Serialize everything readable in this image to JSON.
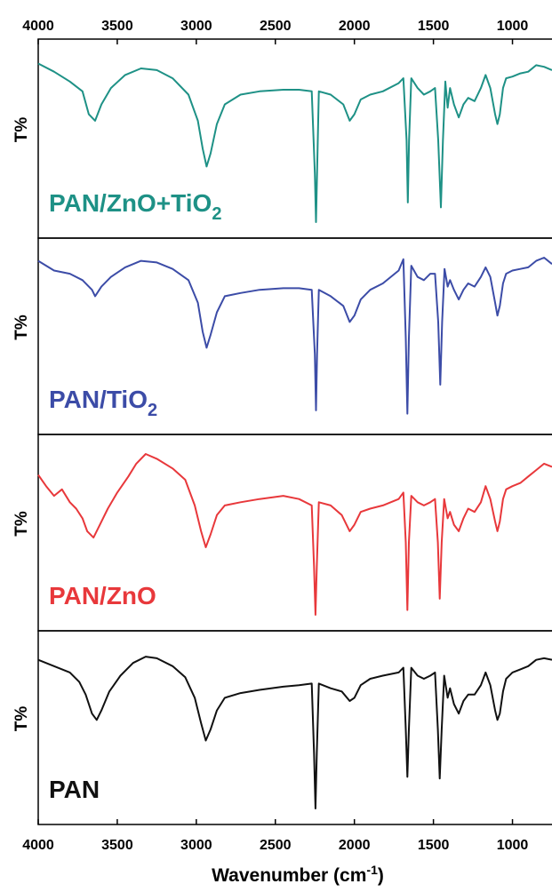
{
  "chart_data": {
    "type": "line",
    "title": "",
    "xlabel_main": "Wavenumber (cm",
    "xlabel_sup": "-1",
    "xlabel_close": ")",
    "ylabel": "T%",
    "xlim": [
      4000,
      750
    ],
    "x_reversed": true,
    "x_ticks": [
      4000,
      3500,
      3000,
      2500,
      2000,
      1500,
      1000
    ],
    "grid": false,
    "legend": "none; each panel labelled in lower-left corner",
    "series": [
      {
        "name_main": "PAN/ZnO+TiO",
        "name_sub": "2",
        "name_tail": "",
        "color": "#1e9186",
        "points": [
          [
            4000,
            0.97
          ],
          [
            3900,
            0.92
          ],
          [
            3800,
            0.86
          ],
          [
            3720,
            0.8
          ],
          [
            3680,
            0.66
          ],
          [
            3640,
            0.62
          ],
          [
            3600,
            0.72
          ],
          [
            3540,
            0.82
          ],
          [
            3450,
            0.9
          ],
          [
            3350,
            0.94
          ],
          [
            3250,
            0.93
          ],
          [
            3150,
            0.88
          ],
          [
            3050,
            0.78
          ],
          [
            2990,
            0.62
          ],
          [
            2960,
            0.45
          ],
          [
            2935,
            0.34
          ],
          [
            2910,
            0.42
          ],
          [
            2870,
            0.6
          ],
          [
            2820,
            0.72
          ],
          [
            2720,
            0.78
          ],
          [
            2600,
            0.8
          ],
          [
            2450,
            0.81
          ],
          [
            2350,
            0.81
          ],
          [
            2270,
            0.8
          ],
          [
            2250,
            0.3
          ],
          [
            2243,
            0.0
          ],
          [
            2236,
            0.3
          ],
          [
            2225,
            0.8
          ],
          [
            2150,
            0.78
          ],
          [
            2070,
            0.72
          ],
          [
            2030,
            0.62
          ],
          [
            2000,
            0.66
          ],
          [
            1960,
            0.75
          ],
          [
            1900,
            0.78
          ],
          [
            1820,
            0.8
          ],
          [
            1720,
            0.85
          ],
          [
            1690,
            0.88
          ],
          [
            1670,
            0.5
          ],
          [
            1662,
            0.12
          ],
          [
            1654,
            0.5
          ],
          [
            1640,
            0.88
          ],
          [
            1600,
            0.82
          ],
          [
            1560,
            0.78
          ],
          [
            1520,
            0.8
          ],
          [
            1490,
            0.82
          ],
          [
            1470,
            0.5
          ],
          [
            1453,
            0.09
          ],
          [
            1440,
            0.5
          ],
          [
            1425,
            0.86
          ],
          [
            1410,
            0.7
          ],
          [
            1395,
            0.82
          ],
          [
            1370,
            0.72
          ],
          [
            1340,
            0.64
          ],
          [
            1310,
            0.72
          ],
          [
            1280,
            0.76
          ],
          [
            1240,
            0.74
          ],
          [
            1200,
            0.82
          ],
          [
            1170,
            0.9
          ],
          [
            1140,
            0.82
          ],
          [
            1110,
            0.66
          ],
          [
            1095,
            0.6
          ],
          [
            1080,
            0.66
          ],
          [
            1060,
            0.82
          ],
          [
            1040,
            0.88
          ],
          [
            1000,
            0.89
          ],
          [
            950,
            0.91
          ],
          [
            900,
            0.92
          ],
          [
            850,
            0.96
          ],
          [
            800,
            0.95
          ],
          [
            750,
            0.93
          ]
        ]
      },
      {
        "name_main": "PAN/TiO",
        "name_sub": "2",
        "name_tail": "",
        "color": "#3c4ca7",
        "points": [
          [
            4000,
            0.98
          ],
          [
            3900,
            0.92
          ],
          [
            3800,
            0.9
          ],
          [
            3720,
            0.86
          ],
          [
            3660,
            0.8
          ],
          [
            3640,
            0.76
          ],
          [
            3600,
            0.82
          ],
          [
            3540,
            0.88
          ],
          [
            3450,
            0.94
          ],
          [
            3350,
            0.98
          ],
          [
            3250,
            0.97
          ],
          [
            3150,
            0.93
          ],
          [
            3050,
            0.86
          ],
          [
            2990,
            0.72
          ],
          [
            2960,
            0.54
          ],
          [
            2935,
            0.44
          ],
          [
            2910,
            0.52
          ],
          [
            2870,
            0.66
          ],
          [
            2820,
            0.76
          ],
          [
            2720,
            0.78
          ],
          [
            2600,
            0.8
          ],
          [
            2450,
            0.81
          ],
          [
            2350,
            0.81
          ],
          [
            2270,
            0.8
          ],
          [
            2250,
            0.4
          ],
          [
            2243,
            0.05
          ],
          [
            2236,
            0.4
          ],
          [
            2225,
            0.8
          ],
          [
            2150,
            0.76
          ],
          [
            2070,
            0.7
          ],
          [
            2030,
            0.6
          ],
          [
            2000,
            0.64
          ],
          [
            1960,
            0.74
          ],
          [
            1900,
            0.8
          ],
          [
            1820,
            0.84
          ],
          [
            1720,
            0.92
          ],
          [
            1690,
            0.99
          ],
          [
            1675,
            0.5
          ],
          [
            1665,
            0.03
          ],
          [
            1655,
            0.5
          ],
          [
            1640,
            0.95
          ],
          [
            1600,
            0.88
          ],
          [
            1560,
            0.86
          ],
          [
            1520,
            0.9
          ],
          [
            1490,
            0.9
          ],
          [
            1470,
            0.6
          ],
          [
            1457,
            0.21
          ],
          [
            1445,
            0.6
          ],
          [
            1430,
            0.93
          ],
          [
            1410,
            0.82
          ],
          [
            1395,
            0.86
          ],
          [
            1370,
            0.8
          ],
          [
            1340,
            0.74
          ],
          [
            1310,
            0.8
          ],
          [
            1280,
            0.84
          ],
          [
            1240,
            0.82
          ],
          [
            1200,
            0.88
          ],
          [
            1170,
            0.94
          ],
          [
            1140,
            0.88
          ],
          [
            1110,
            0.72
          ],
          [
            1095,
            0.64
          ],
          [
            1080,
            0.7
          ],
          [
            1060,
            0.84
          ],
          [
            1040,
            0.9
          ],
          [
            1000,
            0.92
          ],
          [
            950,
            0.93
          ],
          [
            900,
            0.94
          ],
          [
            850,
            0.98
          ],
          [
            800,
            1.0
          ],
          [
            750,
            0.96
          ]
        ]
      },
      {
        "name_main": "PAN/ZnO",
        "name_sub": "",
        "name_tail": "",
        "color": "#e8383b",
        "points": [
          [
            4000,
            0.87
          ],
          [
            3950,
            0.8
          ],
          [
            3900,
            0.74
          ],
          [
            3850,
            0.78
          ],
          [
            3800,
            0.7
          ],
          [
            3760,
            0.66
          ],
          [
            3720,
            0.6
          ],
          [
            3690,
            0.52
          ],
          [
            3650,
            0.48
          ],
          [
            3610,
            0.56
          ],
          [
            3560,
            0.66
          ],
          [
            3500,
            0.76
          ],
          [
            3430,
            0.86
          ],
          [
            3380,
            0.94
          ],
          [
            3320,
            1.0
          ],
          [
            3250,
            0.97
          ],
          [
            3150,
            0.91
          ],
          [
            3070,
            0.84
          ],
          [
            3010,
            0.68
          ],
          [
            2970,
            0.52
          ],
          [
            2940,
            0.42
          ],
          [
            2910,
            0.5
          ],
          [
            2870,
            0.62
          ],
          [
            2820,
            0.68
          ],
          [
            2720,
            0.7
          ],
          [
            2600,
            0.72
          ],
          [
            2450,
            0.74
          ],
          [
            2350,
            0.72
          ],
          [
            2270,
            0.68
          ],
          [
            2255,
            0.3
          ],
          [
            2246,
            0.0
          ],
          [
            2238,
            0.3
          ],
          [
            2225,
            0.7
          ],
          [
            2150,
            0.68
          ],
          [
            2080,
            0.62
          ],
          [
            2030,
            0.52
          ],
          [
            2000,
            0.56
          ],
          [
            1960,
            0.64
          ],
          [
            1900,
            0.66
          ],
          [
            1820,
            0.68
          ],
          [
            1720,
            0.72
          ],
          [
            1690,
            0.76
          ],
          [
            1675,
            0.45
          ],
          [
            1665,
            0.03
          ],
          [
            1655,
            0.45
          ],
          [
            1640,
            0.74
          ],
          [
            1600,
            0.7
          ],
          [
            1560,
            0.68
          ],
          [
            1520,
            0.7
          ],
          [
            1490,
            0.72
          ],
          [
            1472,
            0.45
          ],
          [
            1460,
            0.1
          ],
          [
            1448,
            0.45
          ],
          [
            1432,
            0.72
          ],
          [
            1410,
            0.6
          ],
          [
            1395,
            0.64
          ],
          [
            1370,
            0.56
          ],
          [
            1340,
            0.52
          ],
          [
            1310,
            0.6
          ],
          [
            1280,
            0.66
          ],
          [
            1240,
            0.64
          ],
          [
            1200,
            0.7
          ],
          [
            1170,
            0.8
          ],
          [
            1140,
            0.72
          ],
          [
            1110,
            0.58
          ],
          [
            1095,
            0.52
          ],
          [
            1080,
            0.58
          ],
          [
            1060,
            0.72
          ],
          [
            1040,
            0.78
          ],
          [
            1000,
            0.8
          ],
          [
            950,
            0.82
          ],
          [
            900,
            0.86
          ],
          [
            850,
            0.9
          ],
          [
            800,
            0.94
          ],
          [
            750,
            0.92
          ]
        ]
      },
      {
        "name_main": "PAN",
        "name_sub": "",
        "name_tail": "",
        "color": "#111111",
        "points": [
          [
            4000,
            0.94
          ],
          [
            3900,
            0.9
          ],
          [
            3800,
            0.86
          ],
          [
            3740,
            0.8
          ],
          [
            3700,
            0.72
          ],
          [
            3660,
            0.6
          ],
          [
            3630,
            0.56
          ],
          [
            3600,
            0.62
          ],
          [
            3550,
            0.74
          ],
          [
            3480,
            0.84
          ],
          [
            3400,
            0.92
          ],
          [
            3320,
            0.96
          ],
          [
            3250,
            0.95
          ],
          [
            3150,
            0.9
          ],
          [
            3070,
            0.83
          ],
          [
            3010,
            0.7
          ],
          [
            2970,
            0.54
          ],
          [
            2940,
            0.43
          ],
          [
            2910,
            0.5
          ],
          [
            2870,
            0.62
          ],
          [
            2820,
            0.7
          ],
          [
            2720,
            0.73
          ],
          [
            2600,
            0.75
          ],
          [
            2450,
            0.77
          ],
          [
            2350,
            0.78
          ],
          [
            2270,
            0.79
          ],
          [
            2255,
            0.35
          ],
          [
            2246,
            0.0
          ],
          [
            2238,
            0.35
          ],
          [
            2225,
            0.79
          ],
          [
            2150,
            0.76
          ],
          [
            2080,
            0.74
          ],
          [
            2030,
            0.68
          ],
          [
            2000,
            0.7
          ],
          [
            1960,
            0.78
          ],
          [
            1900,
            0.82
          ],
          [
            1820,
            0.84
          ],
          [
            1720,
            0.86
          ],
          [
            1690,
            0.89
          ],
          [
            1675,
            0.5
          ],
          [
            1665,
            0.2
          ],
          [
            1655,
            0.5
          ],
          [
            1640,
            0.89
          ],
          [
            1600,
            0.84
          ],
          [
            1560,
            0.82
          ],
          [
            1520,
            0.84
          ],
          [
            1490,
            0.86
          ],
          [
            1472,
            0.5
          ],
          [
            1460,
            0.19
          ],
          [
            1448,
            0.5
          ],
          [
            1432,
            0.84
          ],
          [
            1410,
            0.7
          ],
          [
            1395,
            0.76
          ],
          [
            1370,
            0.66
          ],
          [
            1340,
            0.6
          ],
          [
            1310,
            0.68
          ],
          [
            1280,
            0.72
          ],
          [
            1240,
            0.72
          ],
          [
            1200,
            0.78
          ],
          [
            1170,
            0.86
          ],
          [
            1140,
            0.78
          ],
          [
            1110,
            0.62
          ],
          [
            1095,
            0.56
          ],
          [
            1080,
            0.6
          ],
          [
            1060,
            0.74
          ],
          [
            1040,
            0.82
          ],
          [
            1000,
            0.86
          ],
          [
            950,
            0.88
          ],
          [
            900,
            0.9
          ],
          [
            850,
            0.94
          ],
          [
            800,
            0.95
          ],
          [
            750,
            0.94
          ]
        ]
      }
    ]
  }
}
